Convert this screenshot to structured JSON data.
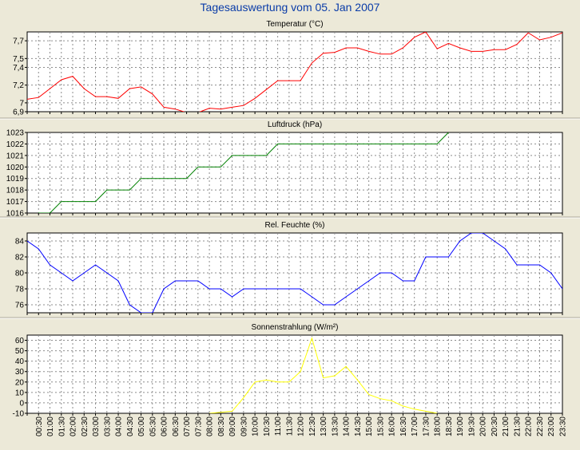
{
  "title": "Tagesauswertung vom 05. Jan 2007",
  "x_labels": [
    "00:30",
    "01:00",
    "01:30",
    "02:00",
    "02:30",
    "03:00",
    "03:30",
    "04:00",
    "04:30",
    "05:00",
    "05:30",
    "06:00",
    "06:30",
    "07:00",
    "07:30",
    "08:00",
    "08:30",
    "09:00",
    "09:30",
    "10:00",
    "10:30",
    "11:00",
    "11:30",
    "12:00",
    "12:30",
    "13:00",
    "13:30",
    "14:00",
    "14:30",
    "15:00",
    "15:30",
    "16:00",
    "16:30",
    "17:00",
    "17:30",
    "18:00",
    "18:30",
    "19:00",
    "19:30",
    "20:00",
    "20:30",
    "21:00",
    "21:30",
    "22:00",
    "22:30",
    "23:00",
    "23:30"
  ],
  "colors": {
    "temperature": "#ff0000",
    "pressure": "#008000",
    "humidity": "#0000ff",
    "radiation": "#ffff00"
  },
  "chart_data": [
    {
      "type": "line",
      "title": "Temperatur (°C)",
      "ylim": [
        6.9,
        7.8
      ],
      "yticks": [
        6.9,
        7,
        7.2,
        7.4,
        7.5,
        7.7
      ],
      "ytick_labels": [
        "6,9",
        "7",
        "7,2",
        "7,4",
        "7,5",
        "7,7"
      ],
      "grid": true,
      "series": [
        {
          "x": [
            0,
            0.5,
            1,
            1.5,
            2,
            2.5,
            3,
            3.5,
            4,
            4.5,
            5,
            5.5,
            6,
            6.5,
            7,
            7.5,
            8,
            8.5,
            9,
            9.5,
            10,
            10.5,
            11,
            11.5,
            12,
            12.5,
            13,
            13.5,
            14,
            14.5,
            15,
            15.5,
            16,
            16.5,
            17,
            17.5,
            18,
            18.5,
            19,
            19.5,
            20,
            20.5,
            21,
            21.5,
            22,
            22.5,
            23,
            23.5
          ],
          "values": [
            7.04,
            7.06,
            7.16,
            7.26,
            7.3,
            7.16,
            7.07,
            7.07,
            7.05,
            7.16,
            7.18,
            7.1,
            6.95,
            6.93,
            6.89,
            6.89,
            6.94,
            6.93,
            6.95,
            6.97,
            7.05,
            7.15,
            7.25,
            7.25,
            7.25,
            7.45,
            7.56,
            7.57,
            7.62,
            7.62,
            7.58,
            7.55,
            7.55,
            7.62,
            7.74,
            7.8,
            7.61,
            7.67,
            7.62,
            7.58,
            7.58,
            7.6,
            7.6,
            7.66,
            7.79,
            7.71,
            7.74,
            7.79
          ]
        }
      ]
    },
    {
      "type": "line",
      "title": "Luftdruck (hPa)",
      "ylim": [
        1016,
        1023
      ],
      "yticks": [
        1016,
        1017,
        1018,
        1019,
        1020,
        1021,
        1022,
        1023
      ],
      "ytick_labels": [
        "1016",
        "1017",
        "1018",
        "1019",
        "1020",
        "1021",
        "1022",
        "1023"
      ],
      "grid": true,
      "series": [
        {
          "x": [
            0,
            0.5,
            1,
            1.5,
            2,
            2.5,
            3,
            3.5,
            4,
            4.5,
            5,
            5.5,
            6,
            6.5,
            7,
            7.5,
            8,
            8.5,
            9,
            9.5,
            10,
            10.5,
            11,
            11.5,
            12,
            12.5,
            13,
            13.5,
            14,
            14.5,
            15,
            15.5,
            16,
            16.5,
            17,
            17.5,
            18,
            18.5
          ],
          "values": [
            1015,
            1016,
            1016,
            1017,
            1017,
            1017,
            1017,
            1018,
            1018,
            1018,
            1019,
            1019,
            1019,
            1019,
            1019,
            1020,
            1020,
            1020,
            1021,
            1021,
            1021,
            1021,
            1022,
            1022,
            1022,
            1022,
            1022,
            1022,
            1022,
            1022,
            1022,
            1022,
            1022,
            1022,
            1022,
            1022,
            1022,
            1023
          ]
        }
      ]
    },
    {
      "type": "line",
      "title": "Rel. Feuchte (%)",
      "ylim": [
        75,
        85
      ],
      "yticks": [
        76,
        78,
        80,
        82,
        84
      ],
      "ytick_labels": [
        "76",
        "78",
        "80",
        "82",
        "84"
      ],
      "grid": true,
      "series": [
        {
          "x": [
            0,
            0.5,
            1,
            1.5,
            2,
            2.5,
            3,
            3.5,
            4,
            4.5,
            5,
            5.5,
            6,
            6.5,
            7,
            7.5,
            8,
            8.5,
            9,
            9.5,
            10,
            10.5,
            11,
            11.5,
            12,
            12.5,
            13,
            13.5,
            14,
            14.5,
            15,
            15.5,
            16,
            16.5,
            17,
            17.5,
            18,
            18.5,
            19,
            19.5,
            20,
            20.5,
            21,
            21.5,
            22,
            22.5,
            23,
            23.5
          ],
          "values": [
            84,
            83,
            81,
            80,
            79,
            80,
            81,
            80,
            79,
            76,
            75,
            75,
            78,
            79,
            79,
            79,
            78,
            78,
            77,
            78,
            78,
            78,
            78,
            78,
            78,
            77,
            76,
            76,
            77,
            78,
            79,
            80,
            80,
            79,
            79,
            82,
            82,
            82,
            84,
            85,
            85,
            84,
            83,
            81,
            81,
            81,
            80,
            78
          ]
        }
      ]
    },
    {
      "type": "line",
      "title": "Sonnenstrahlung (W/m²)",
      "ylim": [
        -10,
        65
      ],
      "yticks": [
        -10,
        0,
        10,
        20,
        30,
        40,
        50,
        60
      ],
      "ytick_labels": [
        "-10",
        "0",
        "10",
        "20",
        "30",
        "40",
        "50",
        "60"
      ],
      "grid": true,
      "series": [
        {
          "x": [
            8,
            8.5,
            9,
            9.5,
            10,
            10.5,
            11,
            11.5,
            12,
            12.5,
            13,
            13.5,
            14,
            14.5,
            15,
            15.5,
            16,
            16.5,
            17,
            17.5,
            18
          ],
          "values": [
            -10,
            -9,
            -8,
            5,
            20,
            22,
            20,
            20,
            30,
            62,
            24,
            26,
            35,
            22,
            8,
            4,
            2,
            -3,
            -6,
            -8,
            -10
          ]
        }
      ]
    }
  ]
}
